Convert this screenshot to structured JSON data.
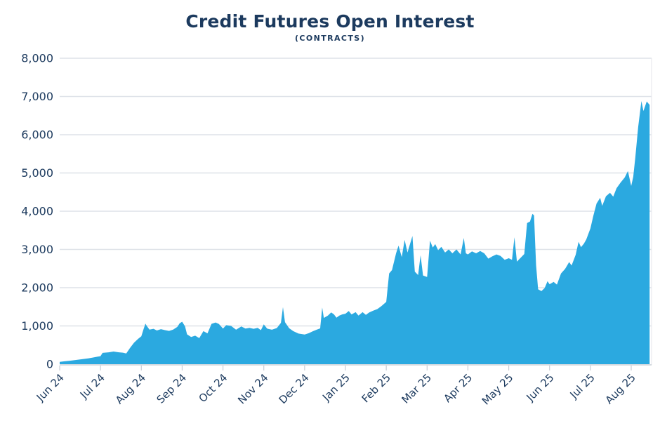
{
  "chart_data": {
    "type": "area",
    "title": "Credit Futures Open Interest",
    "subtitle": "(CONTRACTS)",
    "legend": "none",
    "grid": "horizontal gridlines on",
    "ylim": [
      0,
      8000
    ],
    "y_ticks": [
      {
        "value": 0,
        "label": "0"
      },
      {
        "value": 1000,
        "label": "1,000"
      },
      {
        "value": 2000,
        "label": "2,000"
      },
      {
        "value": 3000,
        "label": "3,000"
      },
      {
        "value": 4000,
        "label": "4,000"
      },
      {
        "value": 5000,
        "label": "5,000"
      },
      {
        "value": 6000,
        "label": "6,000"
      },
      {
        "value": 7000,
        "label": "7,000"
      },
      {
        "value": 8000,
        "label": "8,000"
      }
    ],
    "x_tick_labels": [
      "Jun 24",
      "Jul 24",
      "Aug 24",
      "Sep 24",
      "Oct 24",
      "Nov 24",
      "Dec 24",
      "Jan 25",
      "Feb 25",
      "Mar 25",
      "Apr 25",
      "May 25",
      "Jun 25",
      "Jul 25",
      "Aug 25"
    ],
    "xlim_months_from_jun24": [
      0,
      14.45
    ],
    "series": [
      {
        "name": "Credit futures open interest (contracts)",
        "x_unit": "months since Jun 2024 tick",
        "points": [
          [
            0,
            60
          ],
          [
            0.12,
            75
          ],
          [
            0.25,
            90
          ],
          [
            0.4,
            110
          ],
          [
            0.55,
            130
          ],
          [
            0.7,
            150
          ],
          [
            0.82,
            175
          ],
          [
            0.92,
            195
          ],
          [
            1.0,
            210
          ],
          [
            1.05,
            295
          ],
          [
            1.2,
            310
          ],
          [
            1.32,
            330
          ],
          [
            1.45,
            310
          ],
          [
            1.55,
            300
          ],
          [
            1.63,
            280
          ],
          [
            1.72,
            420
          ],
          [
            1.82,
            560
          ],
          [
            1.92,
            660
          ],
          [
            2.0,
            730
          ],
          [
            2.05,
            900
          ],
          [
            2.1,
            1060
          ],
          [
            2.14,
            990
          ],
          [
            2.2,
            905
          ],
          [
            2.3,
            925
          ],
          [
            2.38,
            880
          ],
          [
            2.48,
            915
          ],
          [
            2.58,
            890
          ],
          [
            2.68,
            870
          ],
          [
            2.78,
            905
          ],
          [
            2.88,
            975
          ],
          [
            2.94,
            1070
          ],
          [
            3.0,
            1110
          ],
          [
            3.07,
            990
          ],
          [
            3.12,
            780
          ],
          [
            3.22,
            710
          ],
          [
            3.32,
            745
          ],
          [
            3.42,
            680
          ],
          [
            3.52,
            865
          ],
          [
            3.62,
            805
          ],
          [
            3.72,
            1055
          ],
          [
            3.82,
            1090
          ],
          [
            3.9,
            1050
          ],
          [
            4.0,
            930
          ],
          [
            4.08,
            1020
          ],
          [
            4.2,
            1000
          ],
          [
            4.32,
            900
          ],
          [
            4.45,
            985
          ],
          [
            4.55,
            930
          ],
          [
            4.65,
            950
          ],
          [
            4.75,
            925
          ],
          [
            4.85,
            950
          ],
          [
            4.93,
            890
          ],
          [
            5.0,
            1040
          ],
          [
            5.08,
            930
          ],
          [
            5.2,
            900
          ],
          [
            5.32,
            945
          ],
          [
            5.42,
            1080
          ],
          [
            5.47,
            1490
          ],
          [
            5.52,
            1100
          ],
          [
            5.62,
            940
          ],
          [
            5.72,
            865
          ],
          [
            5.85,
            800
          ],
          [
            6.0,
            775
          ],
          [
            6.1,
            810
          ],
          [
            6.2,
            860
          ],
          [
            6.3,
            905
          ],
          [
            6.38,
            935
          ],
          [
            6.43,
            1480
          ],
          [
            6.47,
            1210
          ],
          [
            6.57,
            1270
          ],
          [
            6.65,
            1355
          ],
          [
            6.72,
            1300
          ],
          [
            6.78,
            1215
          ],
          [
            6.85,
            1270
          ],
          [
            6.92,
            1300
          ],
          [
            7.0,
            1320
          ],
          [
            7.08,
            1390
          ],
          [
            7.15,
            1300
          ],
          [
            7.25,
            1360
          ],
          [
            7.32,
            1270
          ],
          [
            7.42,
            1360
          ],
          [
            7.5,
            1290
          ],
          [
            7.58,
            1350
          ],
          [
            7.68,
            1400
          ],
          [
            7.78,
            1440
          ],
          [
            7.88,
            1520
          ],
          [
            8.0,
            1630
          ],
          [
            8.07,
            2370
          ],
          [
            8.14,
            2460
          ],
          [
            8.24,
            2900
          ],
          [
            8.3,
            3100
          ],
          [
            8.38,
            2800
          ],
          [
            8.45,
            3250
          ],
          [
            8.52,
            2920
          ],
          [
            8.57,
            3100
          ],
          [
            8.64,
            3350
          ],
          [
            8.7,
            2420
          ],
          [
            8.78,
            2330
          ],
          [
            8.84,
            2850
          ],
          [
            8.9,
            2320
          ],
          [
            9.0,
            2280
          ],
          [
            9.07,
            3230
          ],
          [
            9.14,
            3050
          ],
          [
            9.2,
            3140
          ],
          [
            9.27,
            2980
          ],
          [
            9.35,
            3070
          ],
          [
            9.44,
            2920
          ],
          [
            9.53,
            3000
          ],
          [
            9.62,
            2900
          ],
          [
            9.72,
            3000
          ],
          [
            9.82,
            2870
          ],
          [
            9.9,
            3300
          ],
          [
            9.95,
            2900
          ],
          [
            10.0,
            2870
          ],
          [
            10.1,
            2950
          ],
          [
            10.2,
            2900
          ],
          [
            10.3,
            2960
          ],
          [
            10.4,
            2900
          ],
          [
            10.5,
            2760
          ],
          [
            10.6,
            2820
          ],
          [
            10.7,
            2870
          ],
          [
            10.8,
            2830
          ],
          [
            10.9,
            2730
          ],
          [
            11.0,
            2770
          ],
          [
            11.08,
            2730
          ],
          [
            11.14,
            3320
          ],
          [
            11.2,
            2680
          ],
          [
            11.3,
            2790
          ],
          [
            11.38,
            2880
          ],
          [
            11.45,
            3690
          ],
          [
            11.52,
            3730
          ],
          [
            11.58,
            3930
          ],
          [
            11.62,
            3890
          ],
          [
            11.67,
            2590
          ],
          [
            11.72,
            1960
          ],
          [
            11.8,
            1910
          ],
          [
            11.88,
            1990
          ],
          [
            11.95,
            2170
          ],
          [
            12.0,
            2090
          ],
          [
            12.1,
            2150
          ],
          [
            12.18,
            2080
          ],
          [
            12.28,
            2370
          ],
          [
            12.38,
            2490
          ],
          [
            12.48,
            2670
          ],
          [
            12.54,
            2580
          ],
          [
            12.64,
            2860
          ],
          [
            12.71,
            3200
          ],
          [
            12.77,
            3060
          ],
          [
            12.84,
            3150
          ],
          [
            12.9,
            3260
          ],
          [
            13.0,
            3550
          ],
          [
            13.07,
            3870
          ],
          [
            13.15,
            4200
          ],
          [
            13.24,
            4350
          ],
          [
            13.29,
            4140
          ],
          [
            13.38,
            4390
          ],
          [
            13.48,
            4480
          ],
          [
            13.56,
            4380
          ],
          [
            13.64,
            4600
          ],
          [
            13.74,
            4750
          ],
          [
            13.84,
            4880
          ],
          [
            13.92,
            5050
          ],
          [
            14.0,
            4660
          ],
          [
            14.05,
            4900
          ],
          [
            14.1,
            5400
          ],
          [
            14.17,
            6200
          ],
          [
            14.25,
            6880
          ],
          [
            14.3,
            6620
          ],
          [
            14.38,
            6870
          ],
          [
            14.45,
            6780
          ]
        ]
      }
    ]
  },
  "style": {
    "background": "#FFFFFF",
    "title_color": "#1C3A5E",
    "label_color": "#1C3A5E",
    "grid_color": "#DEE2E8",
    "axis_color": "#C7CDD5",
    "right_border_color": "#E8EAEE",
    "area_color": "#2BA9E0"
  }
}
